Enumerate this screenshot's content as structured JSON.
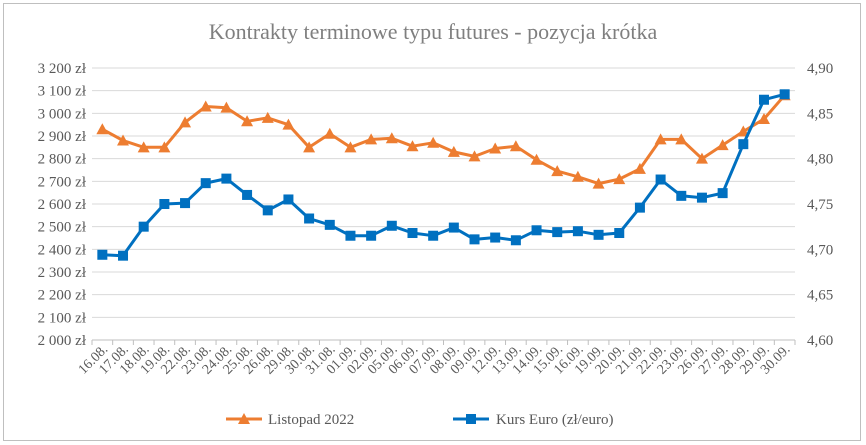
{
  "chart_data": {
    "type": "line",
    "title": "Kontrakty terminowe typu futures - pozycja krótka",
    "categories": [
      "16.08.",
      "17.08.",
      "18.08.",
      "19.08.",
      "22.08.",
      "23.08.",
      "24.08.",
      "25.08.",
      "26.08.",
      "29.08.",
      "30.08.",
      "31.08.",
      "01.09.",
      "02.09.",
      "05.09.",
      "06.09.",
      "07.09.",
      "08.09.",
      "09.09.",
      "12.09.",
      "13.09.",
      "14.09.",
      "15.09.",
      "16.09.",
      "19.09.",
      "20.09.",
      "21.09.",
      "22.09.",
      "23.09.",
      "26.09.",
      "27.09.",
      "28.09.",
      "29.09.",
      "30.09."
    ],
    "y_left": {
      "min": 2000,
      "max": 3200,
      "ticks": [
        {
          "value": 2000,
          "label": "2 000 zł"
        },
        {
          "value": 2100,
          "label": "2 100 zł"
        },
        {
          "value": 2200,
          "label": "2 200 zł"
        },
        {
          "value": 2300,
          "label": "2 300 zł"
        },
        {
          "value": 2400,
          "label": "2 400 zł"
        },
        {
          "value": 2500,
          "label": "2 500 zł"
        },
        {
          "value": 2600,
          "label": "2 600 zł"
        },
        {
          "value": 2700,
          "label": "2 700 zł"
        },
        {
          "value": 2800,
          "label": "2 800 zł"
        },
        {
          "value": 2900,
          "label": "2 900 zł"
        },
        {
          "value": 3000,
          "label": "3 000 zł"
        },
        {
          "value": 3100,
          "label": "3 100 zł"
        },
        {
          "value": 3200,
          "label": "3 200 zł"
        }
      ]
    },
    "y_right": {
      "min": 4.6,
      "max": 4.9,
      "ticks": [
        {
          "value": 4.6,
          "label": "4,60"
        },
        {
          "value": 4.65,
          "label": "4,65"
        },
        {
          "value": 4.7,
          "label": "4,70"
        },
        {
          "value": 4.75,
          "label": "4,75"
        },
        {
          "value": 4.8,
          "label": "4,80"
        },
        {
          "value": 4.85,
          "label": "4,85"
        },
        {
          "value": 4.9,
          "label": "4,90"
        }
      ]
    },
    "series": [
      {
        "name": "Listopad 2022",
        "axis": "left",
        "color": "#ed7d31",
        "marker": "triangle",
        "values": [
          2930,
          2880,
          2850,
          2850,
          2960,
          3030,
          3025,
          2965,
          2980,
          2950,
          2850,
          2910,
          2850,
          2885,
          2890,
          2855,
          2870,
          2830,
          2810,
          2845,
          2855,
          2795,
          2745,
          2720,
          2690,
          2710,
          2755,
          2885,
          2885,
          2800,
          2860,
          2920,
          2975,
          3080
        ]
      },
      {
        "name": "Kurs Euro (zł/euro)",
        "axis": "right",
        "color": "#0070c0",
        "marker": "square",
        "values": [
          4.694,
          4.693,
          4.725,
          4.75,
          4.751,
          4.773,
          4.778,
          4.76,
          4.743,
          4.755,
          4.734,
          4.727,
          4.715,
          4.715,
          4.726,
          4.718,
          4.715,
          4.724,
          4.711,
          4.713,
          4.71,
          4.721,
          4.719,
          4.72,
          4.716,
          4.718,
          4.746,
          4.777,
          4.759,
          4.757,
          4.762,
          4.816,
          4.865,
          4.871
        ]
      }
    ],
    "grid": true,
    "legend_position": "bottom"
  }
}
